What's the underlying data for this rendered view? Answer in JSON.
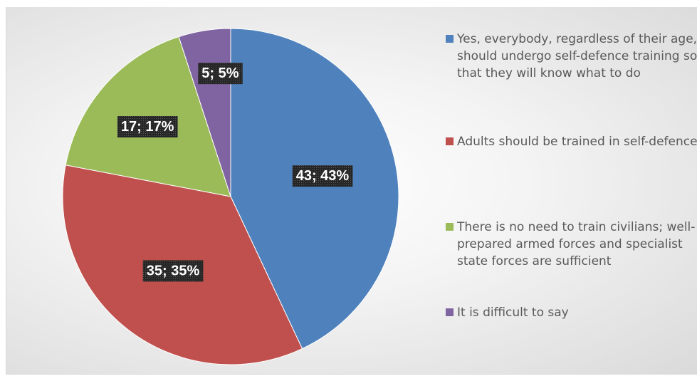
{
  "colors": {
    "series": [
      "#4f81bd",
      "#c0504d",
      "#9bbb59",
      "#8064a2"
    ]
  },
  "chart_data": {
    "type": "pie",
    "title": "",
    "categories": [
      "Yes, everybody, regardless of their age, should undergo self-defence training so that they will know what to do",
      "Adults should be trained in self-defence",
      "There is no need to train civilians; well-prepared armed forces and specialist state forces are sufficient",
      "It is difficult to say"
    ],
    "values": [
      43,
      35,
      17,
      5
    ],
    "percentages": [
      43,
      35,
      17,
      5
    ],
    "data_labels": [
      "43; 43%",
      "35; 35%",
      "17; 17%",
      "5; 5%"
    ],
    "legend_position": "right",
    "start_angle": "12 o'clock",
    "direction": "clockwise"
  }
}
